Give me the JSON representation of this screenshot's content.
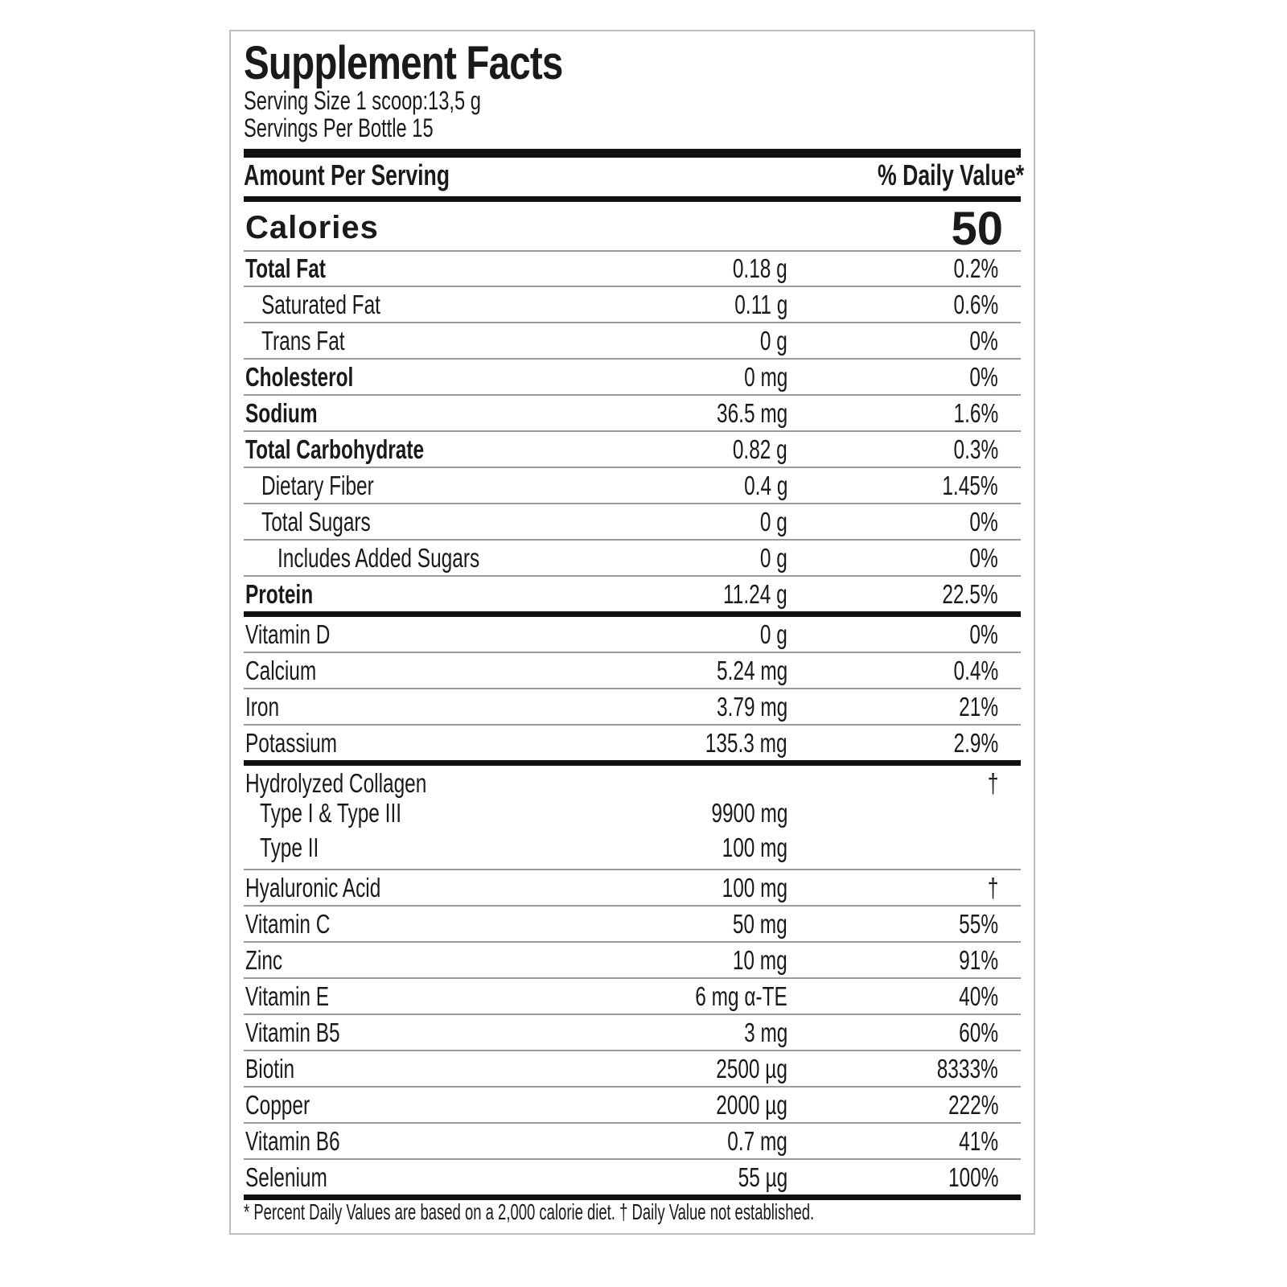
{
  "title": "Supplement Facts",
  "serving_size": "Serving Size 1 scoop:13,5 g",
  "servings_per_container": "Servings Per Bottle 15",
  "header": {
    "amount": "Amount Per Serving",
    "daily_value": "% Daily Value*"
  },
  "calories": {
    "label": "Calories",
    "value": "50"
  },
  "rows": [
    {
      "name": "Total Fat",
      "amount": "0.18 g",
      "dv": "0.2%",
      "bold": true,
      "indent": 0
    },
    {
      "name": "Saturated Fat",
      "amount": "0.11 g",
      "dv": "0.6%",
      "bold": false,
      "indent": 1
    },
    {
      "name": "Trans Fat",
      "amount": "0 g",
      "dv": "0%",
      "bold": false,
      "indent": 1
    },
    {
      "name": "Cholesterol",
      "amount": "0 mg",
      "dv": "0%",
      "bold": true,
      "indent": 0
    },
    {
      "name": "Sodium",
      "amount": "36.5 mg",
      "dv": "1.6%",
      "bold": true,
      "indent": 0
    },
    {
      "name": "Total Carbohydrate",
      "amount": "0.82 g",
      "dv": "0.3%",
      "bold": true,
      "indent": 0
    },
    {
      "name": "Dietary Fiber",
      "amount": "0.4 g",
      "dv": "1.45%",
      "bold": false,
      "indent": 1
    },
    {
      "name": "Total Sugars",
      "amount": "0 g",
      "dv": "0%",
      "bold": false,
      "indent": 1
    },
    {
      "name": "Includes Added Sugars",
      "amount": "0 g",
      "dv": "0%",
      "bold": false,
      "indent": 2
    },
    {
      "name": "Protein",
      "amount": "11.24 g",
      "dv": "22.5%",
      "bold": true,
      "indent": 0,
      "thick": true
    },
    {
      "name": "Vitamin D",
      "amount": "0 g",
      "dv": "0%",
      "bold": false,
      "indent": 0
    },
    {
      "name": "Calcium",
      "amount": "5.24 mg",
      "dv": "0.4%",
      "bold": false,
      "indent": 0
    },
    {
      "name": "Iron",
      "amount": "3.79 mg",
      "dv": "21%",
      "bold": false,
      "indent": 0
    },
    {
      "name": "Potassium",
      "amount": "135.3 mg",
      "dv": "2.9%",
      "bold": false,
      "indent": 0,
      "thick": true
    },
    {
      "name": "Hydrolyzed Collagen",
      "amount": "",
      "dv": "†",
      "bold": false,
      "indent": 0,
      "sub": [
        {
          "name": "Type I & Type III",
          "amount": "9900 mg"
        },
        {
          "name": "Type II",
          "amount": "100 mg"
        }
      ]
    },
    {
      "name": "Hyaluronic Acid",
      "amount": "100 mg",
      "dv": "†",
      "bold": false,
      "indent": 0
    },
    {
      "name": "Vitamin C",
      "amount": "50 mg",
      "dv": "55%",
      "bold": false,
      "indent": 0
    },
    {
      "name": "Zinc",
      "amount": "10 mg",
      "dv": "91%",
      "bold": false,
      "indent": 0
    },
    {
      "name": "Vitamin E",
      "amount": "6 mg α-TE",
      "dv": "40%",
      "bold": false,
      "indent": 0
    },
    {
      "name": "Vitamin B5",
      "amount": "3 mg",
      "dv": "60%",
      "bold": false,
      "indent": 0
    },
    {
      "name": "Biotin",
      "amount": "2500 µg",
      "dv": "8333%",
      "bold": false,
      "indent": 0
    },
    {
      "name": "Copper",
      "amount": "2000 µg",
      "dv": "222%",
      "bold": false,
      "indent": 0
    },
    {
      "name": "Vitamin B6",
      "amount": "0.7 mg",
      "dv": "41%",
      "bold": false,
      "indent": 0
    },
    {
      "name": "Selenium",
      "amount": "55 µg",
      "dv": "100%",
      "bold": false,
      "indent": 0,
      "thick": true
    }
  ],
  "footnote": "* Percent Daily Values are based on a 2,000 calorie diet.  † Daily Value not established."
}
